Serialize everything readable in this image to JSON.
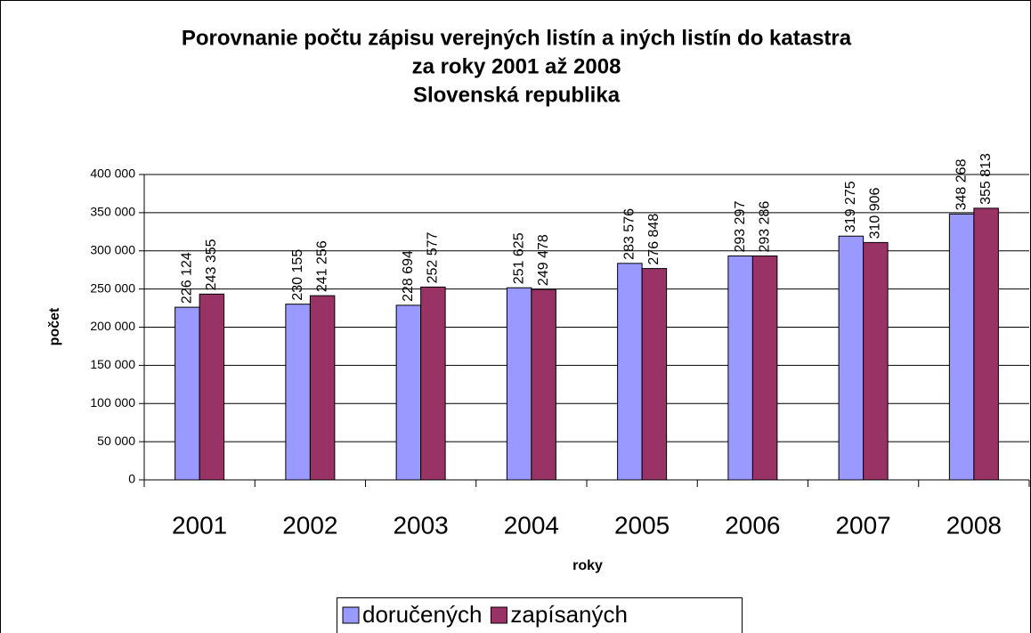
{
  "chart_data": {
    "type": "bar",
    "title": [
      "Porovnanie počtu zápisu verejných listín a iných listín do katastra",
      "za roky 2001 až 2008",
      "Slovenská republika"
    ],
    "x_label": "roky",
    "y_label": "počet",
    "categories": [
      "2001",
      "2002",
      "2003",
      "2004",
      "2005",
      "2006",
      "2007",
      "2008"
    ],
    "series": [
      {
        "name": "doručených",
        "color": "#9999ff",
        "values": [
          226124,
          230155,
          228694,
          251625,
          283576,
          293297,
          319275,
          348268
        ],
        "value_labels": [
          "226 124",
          "230 155",
          "228 694",
          "251 625",
          "283 576",
          "293 297",
          "319 275",
          "348 268"
        ]
      },
      {
        "name": "zapísaných",
        "color": "#993366",
        "values": [
          243355,
          241256,
          252577,
          249478,
          276848,
          293286,
          310906,
          355813
        ],
        "value_labels": [
          "243 355",
          "241 256",
          "252 577",
          "249 478",
          "276 848",
          "293 286",
          "310 906",
          "355 813"
        ]
      }
    ],
    "ylim": [
      0,
      400000
    ],
    "yticks": [
      0,
      {
        "value": 50000,
        "label": "50 000"
      },
      {
        "value": 100000,
        "label": "100 000"
      },
      {
        "value": 150000,
        "label": "150 000"
      },
      {
        "value": 200000,
        "label": "200 000"
      },
      {
        "value": 250000,
        "label": "250 000"
      },
      {
        "value": 300000,
        "label": "300 000"
      },
      {
        "value": 350000,
        "label": "350 000"
      },
      {
        "value": 400000,
        "label": "400 000"
      }
    ],
    "grid": true,
    "legend": "bottom"
  }
}
